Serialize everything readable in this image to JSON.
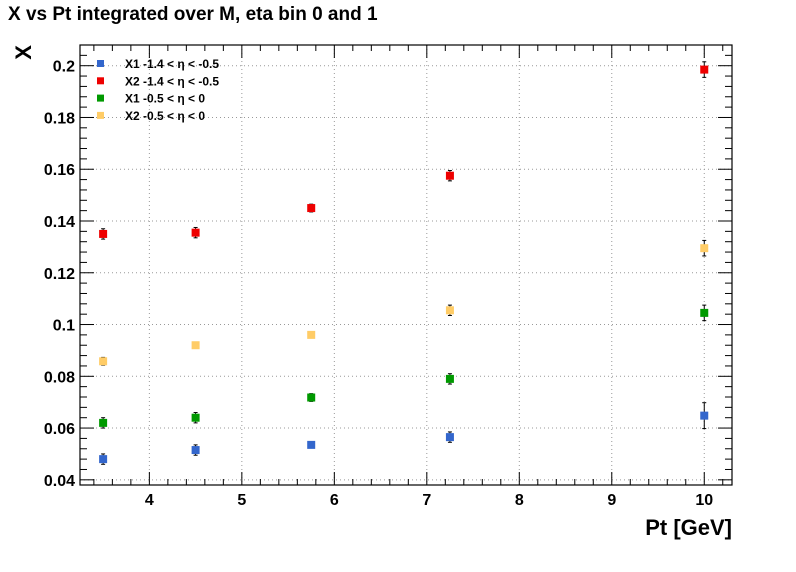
{
  "chart_data": {
    "type": "scatter",
    "title": "X vs Pt integrated over M, eta bin 0 and 1",
    "xlabel": "Pt [GeV]",
    "ylabel": "X",
    "xlim": [
      3.25,
      10.3
    ],
    "ylim": [
      0.038,
      0.208
    ],
    "x_ticks": [
      4,
      5,
      6,
      7,
      8,
      9,
      10
    ],
    "x_tick_labels": [
      "4",
      "5",
      "6",
      "7",
      "8",
      "9",
      "10"
    ],
    "y_ticks": [
      0.04,
      0.06,
      0.08,
      0.1,
      0.12,
      0.14,
      0.16,
      0.18,
      0.2
    ],
    "y_tick_labels": [
      "0.04",
      "0.06",
      "0.08",
      "0.1",
      "0.12",
      "0.14",
      "0.16",
      "0.18",
      "0.2"
    ],
    "grid": true,
    "legend_position": "top-left",
    "x": [
      3.5,
      4.5,
      5.75,
      7.25,
      10
    ],
    "series": [
      {
        "name": "X1 -1.4 < η < -0.5",
        "color": "#3366cc",
        "values": [
          0.048,
          0.0515,
          0.0535,
          0.0565,
          0.0648
        ],
        "errors": [
          0.002,
          0.002,
          0.001,
          0.002,
          0.005
        ]
      },
      {
        "name": "X2 -1.4 < η < -0.5",
        "color": "#ee0000",
        "values": [
          0.135,
          0.1355,
          0.145,
          0.1575,
          0.1985
        ],
        "errors": [
          0.002,
          0.002,
          0.0015,
          0.002,
          0.003
        ]
      },
      {
        "name": "X1 -0.5 < η < 0",
        "color": "#009900",
        "values": [
          0.062,
          0.064,
          0.0718,
          0.079,
          0.1045
        ],
        "errors": [
          0.002,
          0.002,
          0.0015,
          0.002,
          0.003
        ]
      },
      {
        "name": "X2 -0.5 < η < 0",
        "color": "#ffcc66",
        "values": [
          0.0858,
          0.092,
          0.096,
          0.1055,
          0.1295
        ],
        "errors": [
          0.0015,
          0.001,
          0.001,
          0.002,
          0.003
        ]
      }
    ]
  }
}
